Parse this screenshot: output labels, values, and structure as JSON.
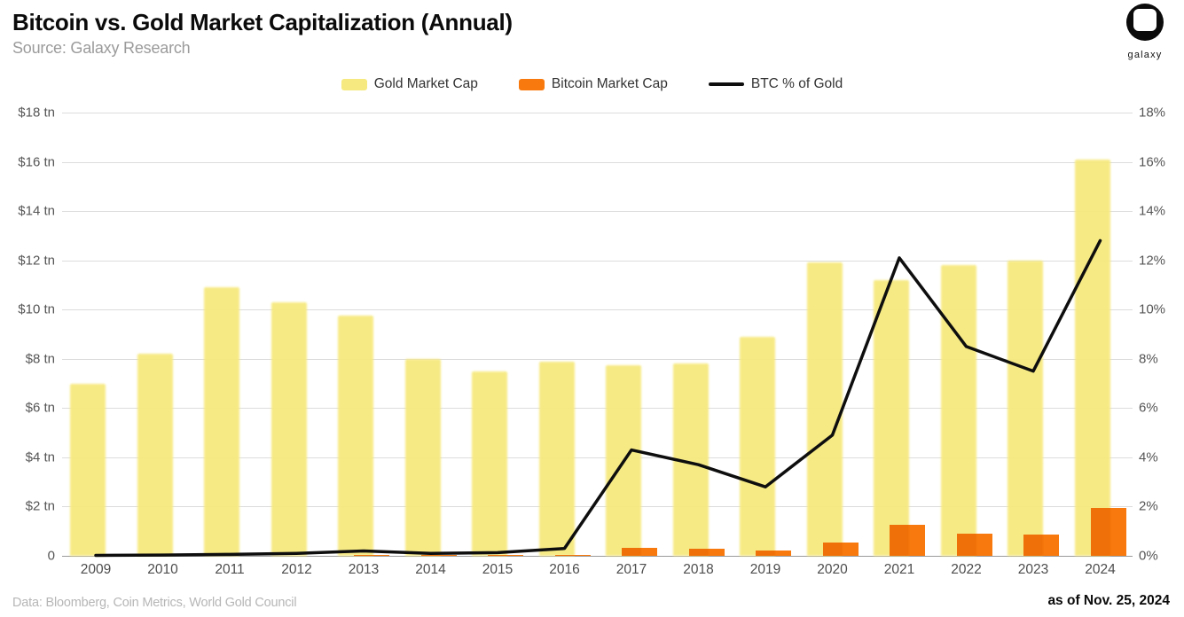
{
  "header": {
    "title": "Bitcoin vs. Gold Market Capitalization (Annual)",
    "subtitle": "Source: Galaxy Research",
    "logo_text": "galaxy"
  },
  "legend": {
    "items": [
      {
        "label": "Gold Market Cap",
        "color": "#f6e97f",
        "kind": "bar"
      },
      {
        "label": "Bitcoin Market Cap",
        "color": "#f87a0e",
        "kind": "bar"
      },
      {
        "label": "BTC % of Gold",
        "color": "#0e0e0e",
        "kind": "line"
      }
    ]
  },
  "chart_data": {
    "type": "combo_bar_line",
    "title": "Bitcoin vs. Gold Market Capitalization (Annual)",
    "categories": [
      "2009",
      "2010",
      "2011",
      "2012",
      "2013",
      "2014",
      "2015",
      "2016",
      "2017",
      "2018",
      "2019",
      "2020",
      "2021",
      "2022",
      "2023",
      "2024"
    ],
    "series": [
      {
        "name": "Gold Market Cap",
        "type": "bar",
        "unit": "$ tn",
        "color": "#f6e97f",
        "values": [
          7.0,
          8.2,
          10.9,
          10.3,
          9.75,
          8.0,
          7.5,
          7.9,
          7.75,
          7.8,
          8.9,
          11.9,
          11.2,
          11.8,
          12.0,
          16.1
        ]
      },
      {
        "name": "Bitcoin Market Cap",
        "type": "bar",
        "unit": "$ tn",
        "color": "#f87a0e",
        "values": [
          0,
          0,
          0,
          0,
          0.02,
          0.01,
          0.01,
          0.02,
          0.33,
          0.3,
          0.23,
          0.55,
          1.25,
          0.9,
          0.85,
          1.95
        ]
      },
      {
        "name": "BTC % of Gold",
        "type": "line",
        "unit": "%",
        "color": "#0e0e0e",
        "values": [
          0.02,
          0.03,
          0.06,
          0.1,
          0.2,
          0.1,
          0.13,
          0.3,
          4.3,
          3.7,
          2.8,
          4.9,
          12.1,
          8.5,
          7.5,
          12.8
        ]
      }
    ],
    "left_axis": {
      "ticks": [
        "$18 tn",
        "$16 tn",
        "$14 tn",
        "$12 tn",
        "$10 tn",
        "$8 tn",
        "$6 tn",
        "$4 tn",
        "$2 tn",
        "0"
      ],
      "range": [
        0,
        18
      ]
    },
    "right_axis": {
      "ticks": [
        "18%",
        "16%",
        "14%",
        "12%",
        "10%",
        "8%",
        "6%",
        "4%",
        "2%",
        "0%"
      ],
      "range": [
        0,
        18
      ]
    },
    "grid": true,
    "legend_position": "top"
  },
  "footer": {
    "left": "Data: Bloomberg, Coin Metrics, World Gold Council",
    "right": "as of Nov. 25, 2024"
  },
  "colors": {
    "gridline": "#dcdcdc",
    "axis_line": "#9a9a9a",
    "tick_text": "#555555"
  }
}
